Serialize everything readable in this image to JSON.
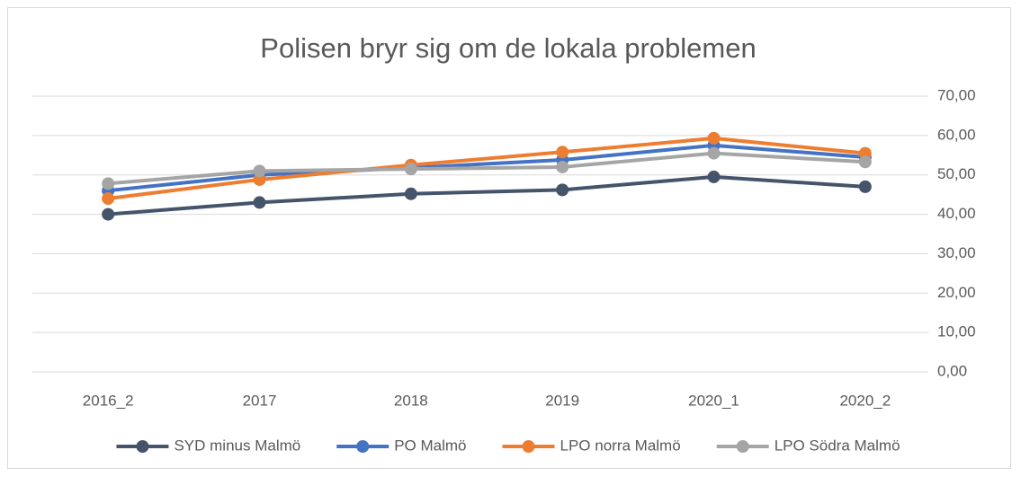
{
  "chart_data": {
    "type": "line",
    "title": "Polisen bryr sig om de lokala problemen",
    "categories": [
      "2016_2",
      "2017",
      "2018",
      "2019",
      "2020_1",
      "2020_2"
    ],
    "series": [
      {
        "name": "SYD minus Malmö",
        "color": "#44546a",
        "values": [
          40.0,
          43.0,
          45.2,
          46.2,
          49.5,
          47.0
        ]
      },
      {
        "name": "PO Malmö",
        "color": "#4472c4",
        "values": [
          46.0,
          50.0,
          51.8,
          53.8,
          57.5,
          54.5
        ]
      },
      {
        "name": "LPO norra Malmö",
        "color": "#ed7d31",
        "values": [
          44.0,
          48.8,
          52.5,
          55.8,
          59.3,
          55.5
        ]
      },
      {
        "name": "LPO Södra Malmö",
        "color": "#a5a5a5",
        "values": [
          47.8,
          51.0,
          51.5,
          52.0,
          55.5,
          53.3
        ]
      }
    ],
    "ylim": [
      0,
      70
    ],
    "yticks": [
      {
        "value": 0,
        "label": "0,00"
      },
      {
        "value": 10,
        "label": "10,00"
      },
      {
        "value": 20,
        "label": "20,00"
      },
      {
        "value": 30,
        "label": "30,00"
      },
      {
        "value": 40,
        "label": "40,00"
      },
      {
        "value": 50,
        "label": "50,00"
      },
      {
        "value": 60,
        "label": "60,00"
      },
      {
        "value": 70,
        "label": "70,00"
      }
    ],
    "grid": true,
    "legend": "bottom"
  }
}
